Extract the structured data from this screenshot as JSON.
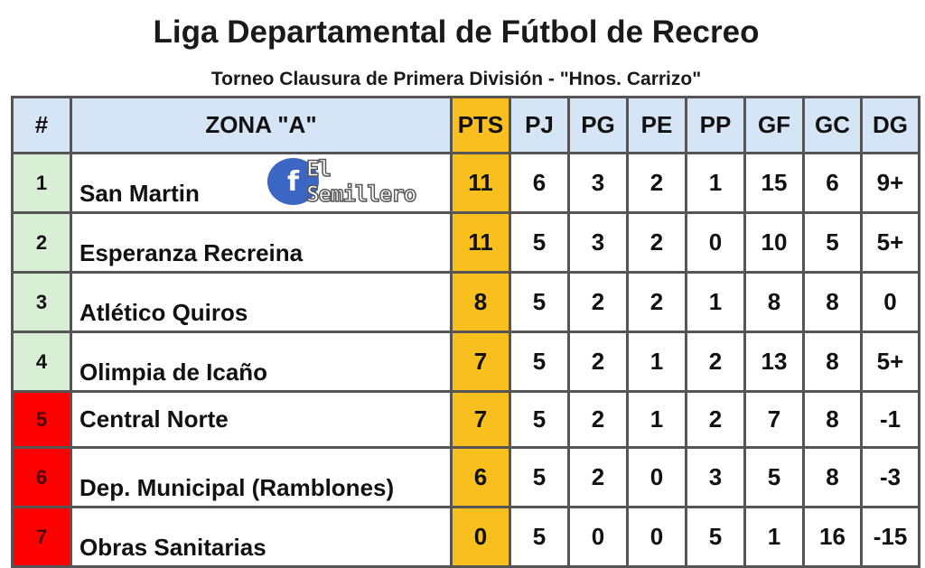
{
  "title": "Liga Departamental de Fútbol  de Recreo",
  "subtitle": "Torneo Clausura de Primera División - \"Hnos. Carrizo\"",
  "watermark": {
    "icon": "facebook-icon",
    "text": "El Semillero"
  },
  "colors": {
    "header": "#d6e5f5",
    "pts": "#f9bf1e",
    "top_positions": "#d9efd5",
    "bottom_positions": "#ff0000"
  },
  "headers": [
    "#",
    "ZONA \"A\"",
    "PTS",
    "PJ",
    "PG",
    "PE",
    "PP",
    "GF",
    "GC",
    "DG"
  ],
  "rows": [
    {
      "pos": "1",
      "team": "San Martin",
      "pts": "11",
      "pj": "6",
      "pg": "3",
      "pe": "2",
      "pp": "1",
      "gf": "15",
      "gc": "6",
      "dg": "9+",
      "status": "green"
    },
    {
      "pos": "2",
      "team": "Esperanza Recreina",
      "pts": "11",
      "pj": "5",
      "pg": "3",
      "pe": "2",
      "pp": "0",
      "gf": "10",
      "gc": "5",
      "dg": "5+",
      "status": "green"
    },
    {
      "pos": "3",
      "team": "Atlético Quiros",
      "pts": "8",
      "pj": "5",
      "pg": "2",
      "pe": "2",
      "pp": "1",
      "gf": "8",
      "gc": "8",
      "dg": "0",
      "status": "green"
    },
    {
      "pos": "4",
      "team": "Olimpia de Icaño",
      "pts": "7",
      "pj": "5",
      "pg": "2",
      "pe": "1",
      "pp": "2",
      "gf": "13",
      "gc": "8",
      "dg": "5+",
      "status": "green"
    },
    {
      "pos": "5",
      "team": "Central Norte",
      "pts": "7",
      "pj": "5",
      "pg": "2",
      "pe": "1",
      "pp": "2",
      "gf": "7",
      "gc": "8",
      "dg": "-1",
      "status": "red"
    },
    {
      "pos": "6",
      "team": "Dep. Municipal (Ramblones)",
      "pts": "6",
      "pj": "5",
      "pg": "2",
      "pe": "0",
      "pp": "3",
      "gf": "5",
      "gc": "8",
      "dg": "-3",
      "status": "red"
    },
    {
      "pos": "7",
      "team": "Obras Sanitarias",
      "pts": "0",
      "pj": "5",
      "pg": "0",
      "pe": "0",
      "pp": "5",
      "gf": "1",
      "gc": "16",
      "dg": "-15",
      "status": "red"
    }
  ]
}
